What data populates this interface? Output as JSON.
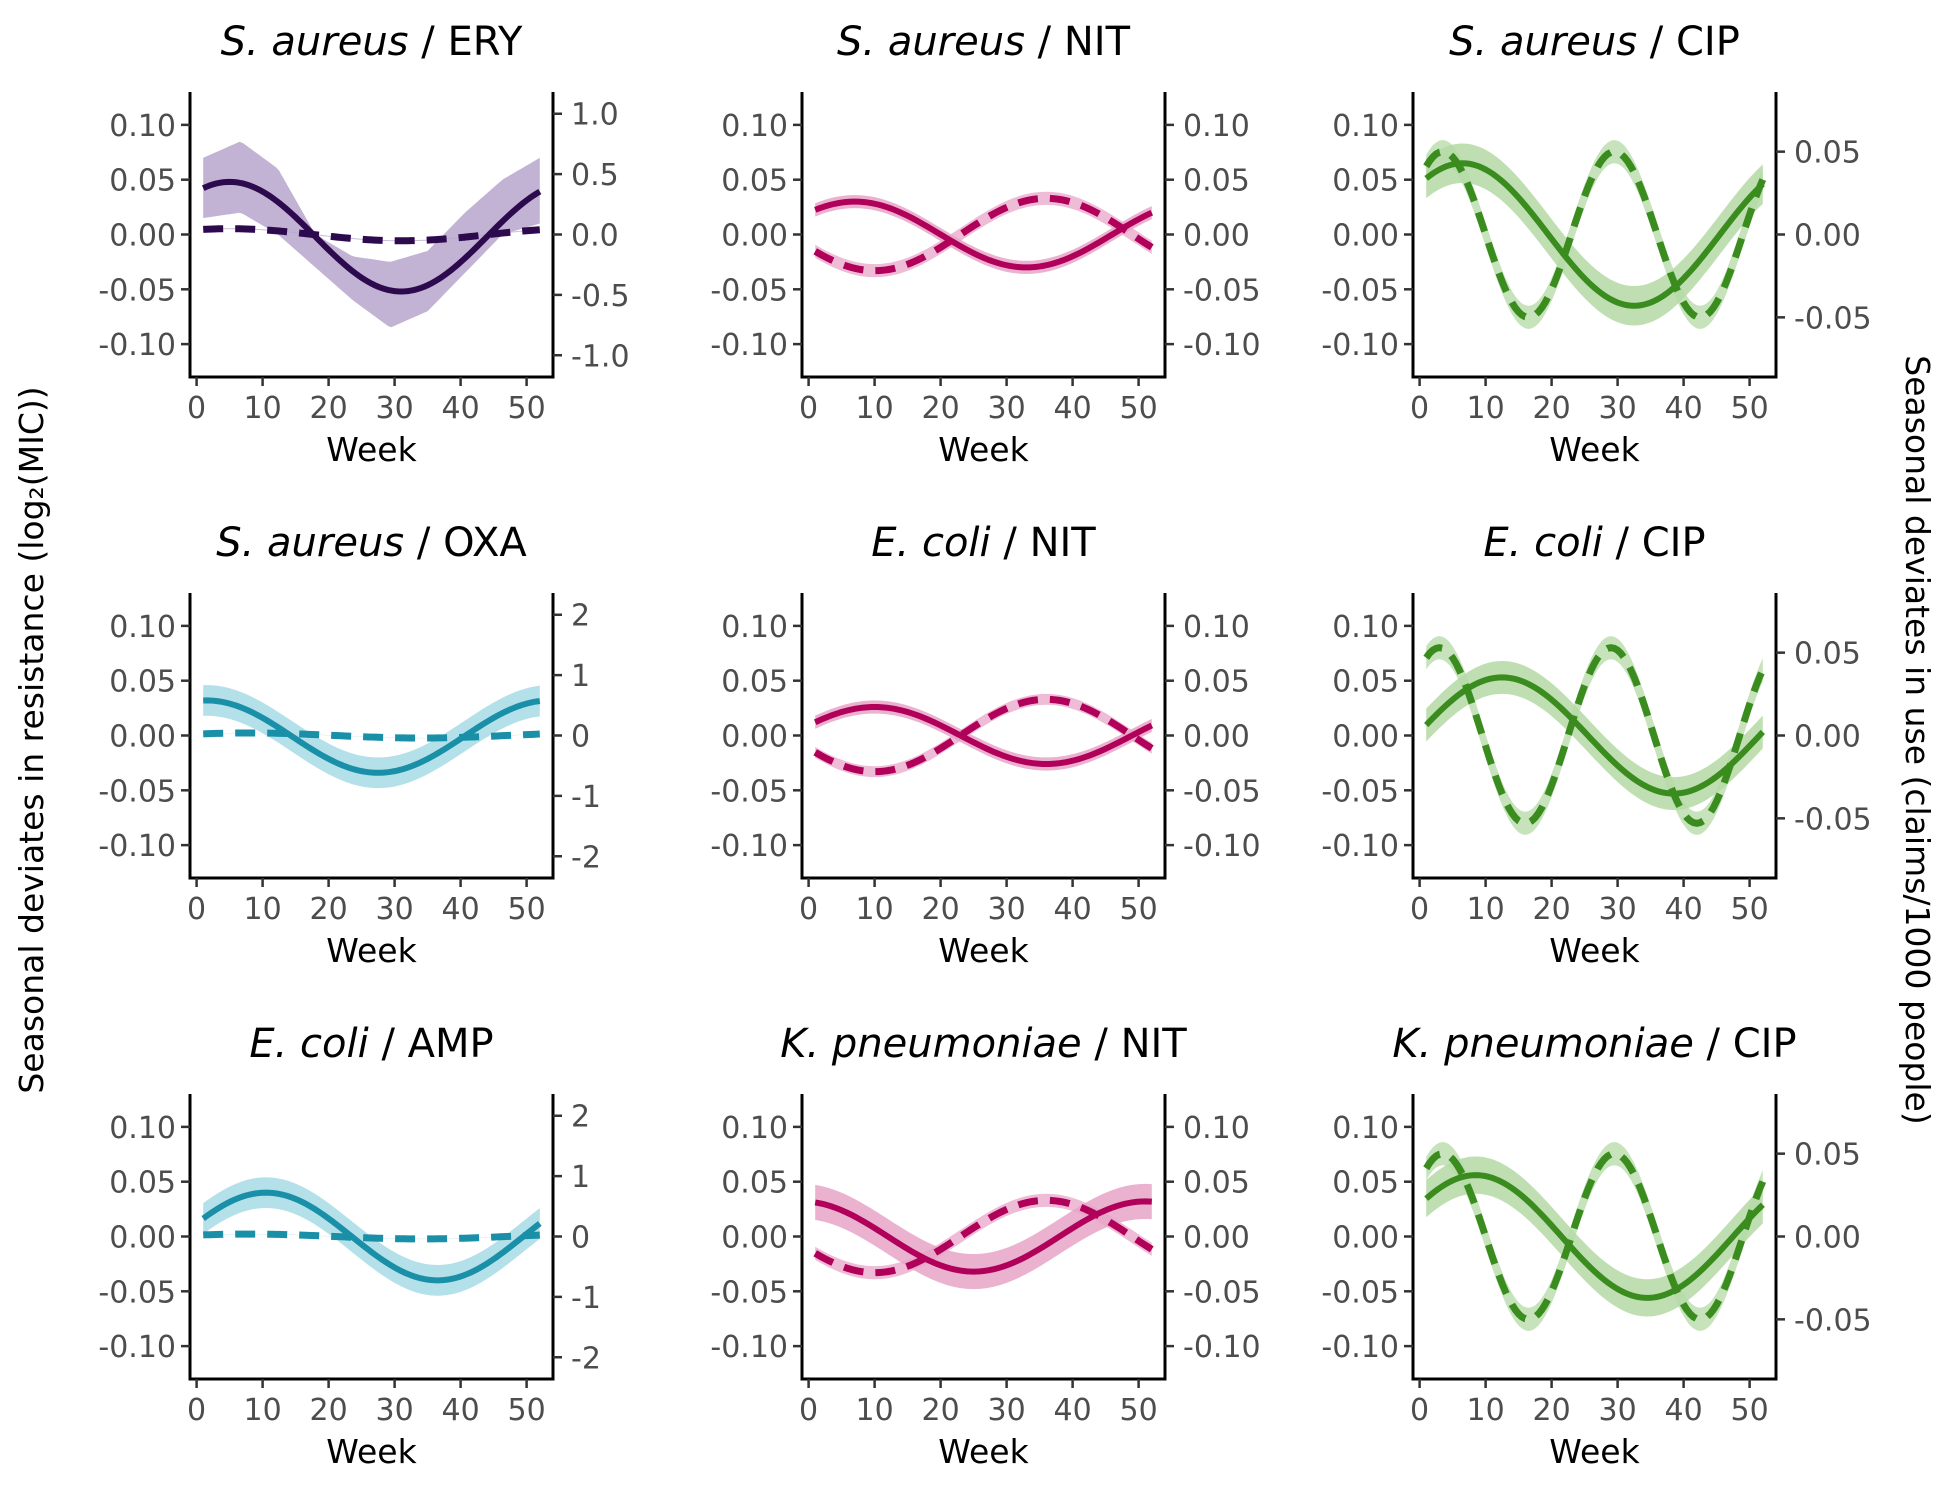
{
  "figure": {
    "ylabel_left": "Seasonal deviates in resistance (log₂(MIC))",
    "ylabel_right": "Seasonal deviates in use (claims/1000 people)"
  },
  "colors": {
    "purple": "#2d0a4e",
    "purple_band": "#b7a6cc",
    "magenta": "#b0005a",
    "magenta_band": "#e8a5c8",
    "green": "#3a8c1e",
    "green_band": "#b4d9a6",
    "teal": "#1a8fa8",
    "teal_band": "#a7dbe5"
  },
  "chart_data": [
    {
      "type": "line",
      "title_species": "S. aureus",
      "title_drug": "ERY",
      "xlabel": "Week",
      "color": "purple",
      "xlim": [
        -1,
        54
      ],
      "xticks": [
        0,
        10,
        20,
        30,
        40,
        50
      ],
      "ylim_left": [
        -0.13,
        0.13
      ],
      "yticks_left": [
        "0.10",
        "0.05",
        "0.00",
        "-0.05",
        "-0.10"
      ],
      "ytick_values_left": [
        0.1,
        0.05,
        0,
        -0.05,
        -0.1
      ],
      "ylim_right": [
        -1.18,
        1.18
      ],
      "yticks_right": [
        "1.0",
        "0.5",
        "0.0",
        "-0.5",
        "-1.0"
      ],
      "ytick_values_right": [
        1,
        0.5,
        0,
        -0.5,
        -1
      ],
      "resistance": {
        "offset": -0.002,
        "amp": 0.05,
        "peak_week": 5,
        "period": 52,
        "band_low": [
          0.015,
          0.02,
          0.0,
          -0.03,
          -0.06,
          -0.085,
          -0.07,
          -0.035,
          0.0,
          0.01
        ],
        "band_high": [
          0.07,
          0.085,
          0.06,
          0.0,
          -0.02,
          -0.025,
          -0.015,
          0.02,
          0.05,
          0.07
        ]
      },
      "use": {
        "offset": -0.002,
        "amp": 0.05,
        "peak_week": 5,
        "period": 52,
        "band_halfwidth": 0.004
      }
    },
    {
      "type": "line",
      "title_species": "S. aureus",
      "title_drug": "NIT",
      "xlabel": "Week",
      "color": "magenta",
      "xlim": [
        -1,
        54
      ],
      "xticks": [
        0,
        10,
        20,
        30,
        40,
        50
      ],
      "ylim_left": [
        -0.13,
        0.13
      ],
      "yticks_left": [
        "0.10",
        "0.05",
        "0.00",
        "-0.05",
        "-0.10"
      ],
      "ytick_values_left": [
        0.1,
        0.05,
        0,
        -0.05,
        -0.1
      ],
      "ylim_right": [
        -0.13,
        0.13
      ],
      "yticks_right": [
        "0.10",
        "0.05",
        "0.00",
        "-0.05",
        "-0.10"
      ],
      "ytick_values_right": [
        0.1,
        0.05,
        0,
        -0.05,
        -0.1
      ],
      "resistance": {
        "offset": 0.0,
        "amp": 0.03,
        "peak_week": 7,
        "period": 52,
        "band_halfwidth": 0.006
      },
      "use": {
        "offset": 0.0,
        "amp": 0.033,
        "peak_week": 36,
        "period": 52,
        "band_halfwidth": 0.006
      }
    },
    {
      "type": "line",
      "title_species": "S. aureus",
      "title_drug": "CIP",
      "xlabel": "Week",
      "color": "green",
      "xlim": [
        -1,
        54
      ],
      "xticks": [
        0,
        10,
        20,
        30,
        40,
        50
      ],
      "ylim_left": [
        -0.13,
        0.13
      ],
      "yticks_left": [
        "0.10",
        "0.05",
        "0.00",
        "-0.05",
        "-0.10"
      ],
      "ytick_values_left": [
        0.1,
        0.05,
        0,
        -0.05,
        -0.1
      ],
      "ylim_right": [
        -0.086,
        0.086
      ],
      "yticks_right": [
        "0.05",
        "0.00",
        "-0.05"
      ],
      "ytick_values_right": [
        0.05,
        0,
        -0.05
      ],
      "resistance": {
        "offset": 0.0,
        "amp": 0.065,
        "peak_week": 6.5,
        "period": 52,
        "band_halfwidth": 0.018
      },
      "use": {
        "offset": 0.0,
        "amp": 0.05,
        "peak_week": 29.5,
        "period": 26,
        "band_halfwidth": 0.007
      }
    },
    {
      "type": "line",
      "title_species": "S. aureus",
      "title_drug": "OXA",
      "xlabel": "Week",
      "color": "teal",
      "xlim": [
        -1,
        54
      ],
      "xticks": [
        0,
        10,
        20,
        30,
        40,
        50
      ],
      "ylim_left": [
        -0.13,
        0.13
      ],
      "yticks_left": [
        "0.10",
        "0.05",
        "0.00",
        "-0.05",
        "-0.10"
      ],
      "ytick_values_left": [
        0.1,
        0.05,
        0,
        -0.05,
        -0.1
      ],
      "ylim_right": [
        -2.36,
        2.36
      ],
      "yticks_right": [
        "2",
        "1",
        "0",
        "-1",
        "-2"
      ],
      "ytick_values_right": [
        2,
        1,
        0,
        -1,
        -2
      ],
      "resistance": {
        "offset": -0.001,
        "amp": 0.033,
        "peak_week": 1.5,
        "period": 52,
        "band_halfwidth": 0.014
      },
      "use": {
        "offset": 0.0,
        "amp": 0.042,
        "peak_week": 8,
        "period": 52,
        "band_halfwidth": 0.003
      }
    },
    {
      "type": "line",
      "title_species": "E. coli",
      "title_drug": "NIT",
      "xlabel": "Week",
      "color": "magenta",
      "xlim": [
        -1,
        54
      ],
      "xticks": [
        0,
        10,
        20,
        30,
        40,
        50
      ],
      "ylim_left": [
        -0.13,
        0.13
      ],
      "yticks_left": [
        "0.10",
        "0.05",
        "0.00",
        "-0.05",
        "-0.10"
      ],
      "ytick_values_left": [
        0.1,
        0.05,
        0,
        -0.05,
        -0.1
      ],
      "ylim_right": [
        -0.13,
        0.13
      ],
      "yticks_right": [
        "0.10",
        "0.05",
        "0.00",
        "-0.05",
        "-0.10"
      ],
      "ytick_values_right": [
        0.1,
        0.05,
        0,
        -0.05,
        -0.1
      ],
      "resistance": {
        "offset": 0.0,
        "amp": 0.026,
        "peak_week": 10,
        "period": 52,
        "band_halfwidth": 0.006
      },
      "use": {
        "offset": 0.0,
        "amp": 0.033,
        "peak_week": 36,
        "period": 52,
        "band_halfwidth": 0.005
      }
    },
    {
      "type": "line",
      "title_species": "E. coli",
      "title_drug": "CIP",
      "xlabel": "Week",
      "color": "green",
      "xlim": [
        -1,
        54
      ],
      "xticks": [
        0,
        10,
        20,
        30,
        40,
        50
      ],
      "ylim_left": [
        -0.13,
        0.13
      ],
      "yticks_left": [
        "0.10",
        "0.05",
        "0.00",
        "-0.05",
        "-0.10"
      ],
      "ytick_values_left": [
        0.1,
        0.05,
        0,
        -0.05,
        -0.1
      ],
      "ylim_right": [
        -0.086,
        0.086
      ],
      "yticks_right": [
        "0.05",
        "0.00",
        "-0.05"
      ],
      "ytick_values_right": [
        0.05,
        0,
        -0.05
      ],
      "resistance": {
        "offset": 0.0,
        "amp": 0.053,
        "peak_week": 12.5,
        "period": 52,
        "band_halfwidth": 0.015
      },
      "use": {
        "offset": 0.0,
        "amp": 0.053,
        "peak_week": 29,
        "period": 26,
        "band_halfwidth": 0.007
      }
    },
    {
      "type": "line",
      "title_species": "E. coli",
      "title_drug": "AMP",
      "xlabel": "Week",
      "color": "teal",
      "xlim": [
        -1,
        54
      ],
      "xticks": [
        0,
        10,
        20,
        30,
        40,
        50
      ],
      "ylim_left": [
        -0.13,
        0.13
      ],
      "yticks_left": [
        "0.10",
        "0.05",
        "0.00",
        "-0.05",
        "-0.10"
      ],
      "ytick_values_left": [
        0.1,
        0.05,
        0,
        -0.05,
        -0.1
      ],
      "ylim_right": [
        -2.36,
        2.36
      ],
      "yticks_right": [
        "2",
        "1",
        "0",
        "-1",
        "-2"
      ],
      "ytick_values_right": [
        2,
        1,
        0,
        -1,
        -2
      ],
      "resistance": {
        "offset": 0.0,
        "amp": 0.04,
        "peak_week": 10.5,
        "period": 52,
        "band_halfwidth": 0.014
      },
      "use": {
        "offset": 0.0,
        "amp": 0.04,
        "peak_week": 8,
        "period": 52,
        "band_halfwidth": 0.003
      }
    },
    {
      "type": "line",
      "title_species": "K. pneumoniae",
      "title_drug": "NIT",
      "xlabel": "Week",
      "color": "magenta",
      "xlim": [
        -1,
        54
      ],
      "xticks": [
        0,
        10,
        20,
        30,
        40,
        50
      ],
      "ylim_left": [
        -0.13,
        0.13
      ],
      "yticks_left": [
        "0.10",
        "0.05",
        "0.00",
        "-0.05",
        "-0.10"
      ],
      "ytick_values_left": [
        0.1,
        0.05,
        0,
        -0.05,
        -0.1
      ],
      "ylim_right": [
        -0.13,
        0.13
      ],
      "yticks_right": [
        "0.10",
        "0.05",
        "0.00",
        "-0.05",
        "-0.10"
      ],
      "ytick_values_right": [
        0.1,
        0.05,
        0,
        -0.05,
        -0.1
      ],
      "resistance": {
        "offset": 0.0,
        "amp": 0.032,
        "peak_week": 51,
        "period": 52,
        "band_halfwidth": 0.016
      },
      "use": {
        "offset": 0.0,
        "amp": 0.033,
        "peak_week": 36,
        "period": 52,
        "band_halfwidth": 0.006
      }
    },
    {
      "type": "line",
      "title_species": "K. pneumoniae",
      "title_drug": "CIP",
      "xlabel": "Week",
      "color": "green",
      "xlim": [
        -1,
        54
      ],
      "xticks": [
        0,
        10,
        20,
        30,
        40,
        50
      ],
      "ylim_left": [
        -0.13,
        0.13
      ],
      "yticks_left": [
        "0.10",
        "0.05",
        "0.00",
        "-0.05",
        "-0.10"
      ],
      "ytick_values_left": [
        0.1,
        0.05,
        0,
        -0.05,
        -0.1
      ],
      "ylim_right": [
        -0.086,
        0.086
      ],
      "yticks_right": [
        "0.05",
        "0.00",
        "-0.05"
      ],
      "ytick_values_right": [
        0.05,
        0,
        -0.05
      ],
      "resistance": {
        "offset": 0.0,
        "amp": 0.056,
        "peak_week": 8.5,
        "period": 52,
        "band_halfwidth": 0.017
      },
      "use": {
        "offset": 0.0,
        "amp": 0.05,
        "peak_week": 29.5,
        "period": 26,
        "band_halfwidth": 0.007
      }
    }
  ]
}
